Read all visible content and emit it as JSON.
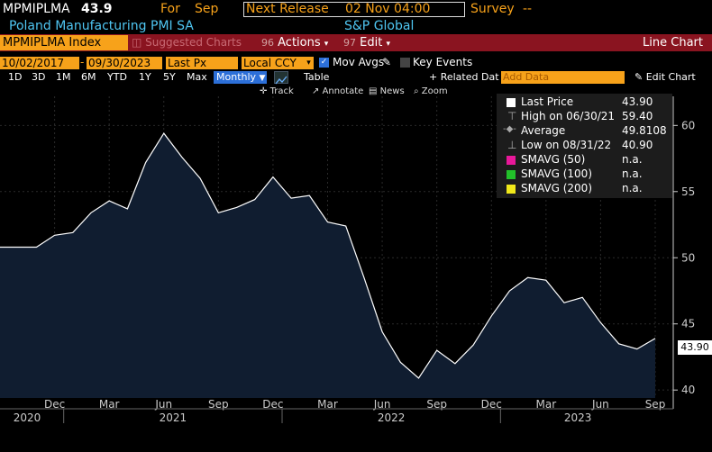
{
  "header": {
    "ticker": "MPMIPLMA",
    "value": "43.9",
    "for_label": "For",
    "for_month": "Sep",
    "release_label": "Next Release",
    "release_value": "02 Nov 04:00",
    "survey_label": "Survey",
    "survey_value": "--",
    "description": "Poland Manufacturing PMI SA",
    "source": "S&P Global"
  },
  "redbar": {
    "index": "MPMIPLMA Index",
    "suggested": "Suggested Charts",
    "actions_num": "96",
    "actions": "Actions",
    "edit_num": "97",
    "edit": "Edit",
    "chart_type": "Line Chart"
  },
  "toolbar": {
    "start_date": "10/02/2017",
    "end_date": "09/30/2023",
    "field": "Last Px",
    "currency": "Local CCY",
    "mov_avgs": "Mov Avgs",
    "key_events": "Key Events"
  },
  "periods": {
    "items": [
      "1D",
      "3D",
      "1M",
      "6M",
      "YTD",
      "1Y",
      "5Y",
      "Max"
    ],
    "frequency": "Monthly",
    "table": "Table",
    "related": "+ Related Dat",
    "add_data": "Add Data",
    "edit_chart": "Edit Chart"
  },
  "chart_tools": {
    "track": "Track",
    "annotate": "Annotate",
    "news": "News",
    "zoom": "Zoom"
  },
  "legend": {
    "rows": [
      {
        "name": "Last Price",
        "value": "43.90",
        "swatch": "#ffffff"
      },
      {
        "name": "High on 06/30/21",
        "value": "59.40",
        "swatch": ""
      },
      {
        "name": "Average",
        "value": "49.8108",
        "swatch": ""
      },
      {
        "name": "Low on 08/31/22",
        "value": "40.90",
        "swatch": ""
      },
      {
        "name": "SMAVG (50)",
        "value": "n.a.",
        "swatch": "#e8189a"
      },
      {
        "name": "SMAVG (100)",
        "value": "n.a.",
        "swatch": "#22c02a"
      },
      {
        "name": "SMAVG (200)",
        "value": "n.a.",
        "swatch": "#f0e81a"
      }
    ]
  },
  "price_tag": "43.90",
  "colors": {
    "accent": "#f7a21a",
    "redbar": "#8a1420",
    "link_blue": "#4fc6f2",
    "area_fill": "#101d30"
  },
  "chart_data": {
    "type": "area",
    "title": "",
    "xlabel": "",
    "ylabel": "",
    "ylim": [
      39.4,
      62.2
    ],
    "yticks": [
      40,
      45,
      50,
      55,
      60
    ],
    "month_ticks": [
      "Dec",
      "Mar",
      "Jun",
      "Sep",
      "Dec",
      "Mar",
      "Jun",
      "Sep",
      "Dec",
      "Mar",
      "Jun",
      "Sep"
    ],
    "year_ticks": [
      "2020",
      "2021",
      "2022",
      "2023"
    ],
    "x": [
      "2020-09",
      "2020-10",
      "2020-11",
      "2020-12",
      "2021-01",
      "2021-02",
      "2021-03",
      "2021-04",
      "2021-05",
      "2021-06",
      "2021-07",
      "2021-08",
      "2021-09",
      "2021-10",
      "2021-11",
      "2021-12",
      "2022-01",
      "2022-02",
      "2022-03",
      "2022-04",
      "2022-05",
      "2022-06",
      "2022-07",
      "2022-08",
      "2022-09",
      "2022-10",
      "2022-11",
      "2022-12",
      "2023-01",
      "2023-02",
      "2023-03",
      "2023-04",
      "2023-05",
      "2023-06",
      "2023-07",
      "2023-08",
      "2023-09"
    ],
    "series": [
      {
        "values": [
          50.8,
          50.8,
          50.8,
          51.7,
          51.9,
          53.4,
          54.3,
          53.7,
          57.2,
          59.4,
          57.6,
          56.0,
          53.4,
          53.8,
          54.4,
          56.1,
          54.5,
          54.7,
          52.7,
          52.4,
          48.5,
          44.4,
          42.1,
          40.9,
          43.0,
          42.0,
          43.4,
          45.6,
          47.5,
          48.5,
          48.3,
          46.6,
          47.0,
          45.1,
          43.5,
          43.1,
          43.9
        ]
      }
    ]
  }
}
